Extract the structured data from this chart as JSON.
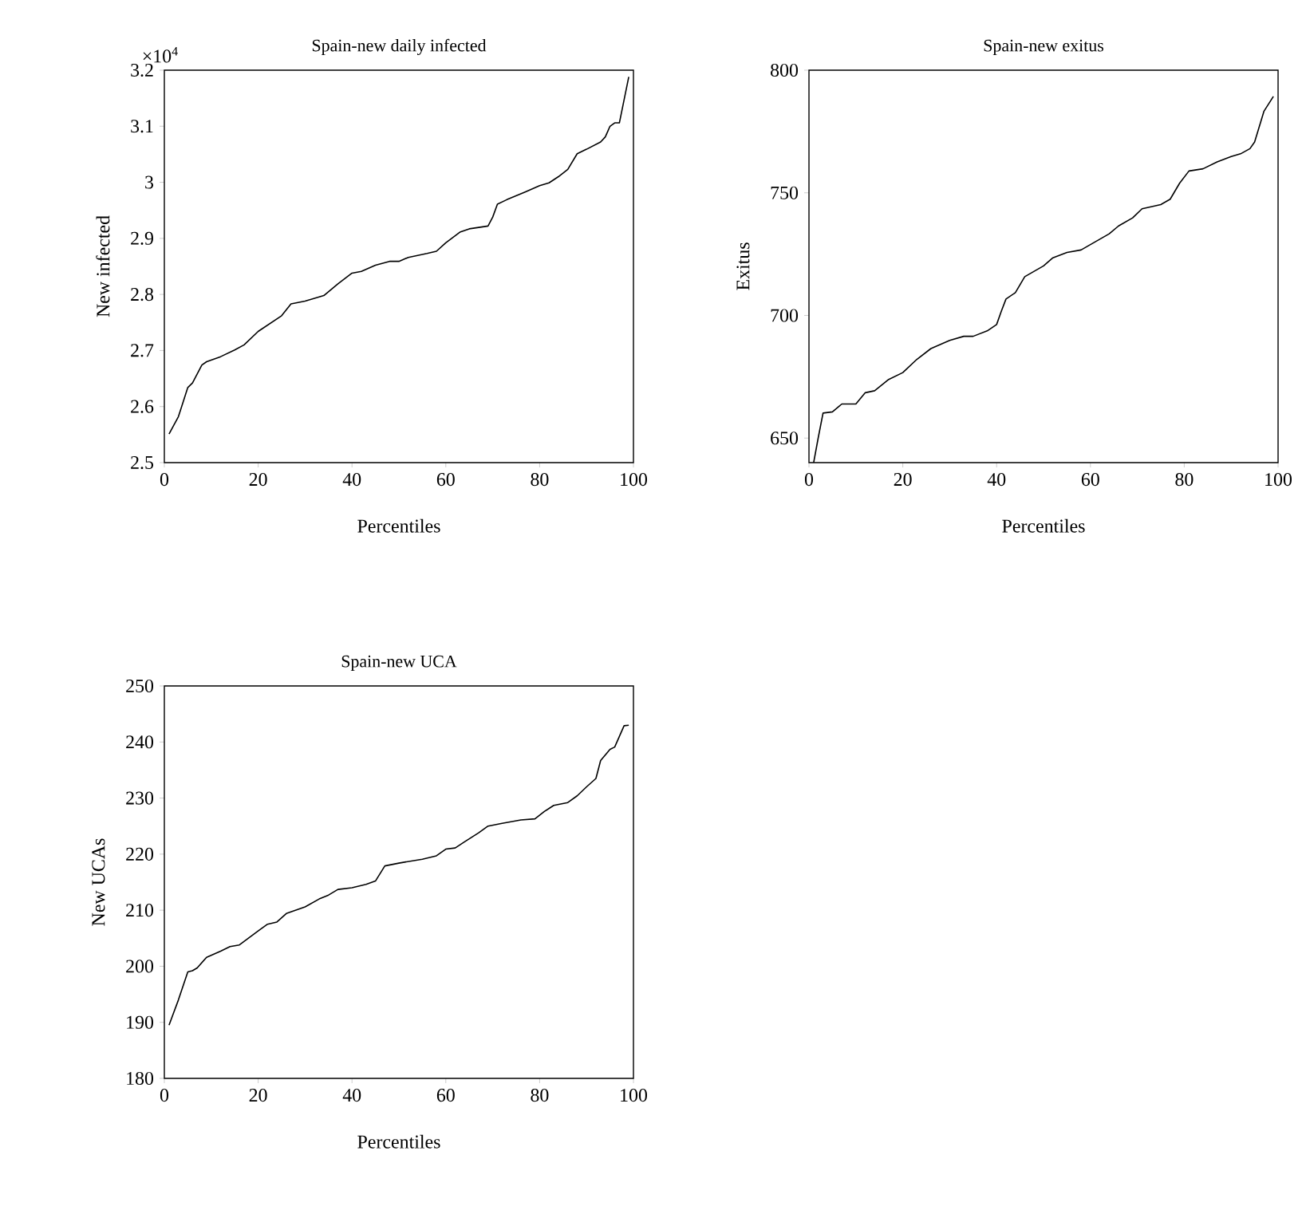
{
  "chart_data": [
    {
      "type": "line",
      "title": "Spain-new daily infected",
      "xlabel": "Percentiles",
      "ylabel": "New infected",
      "annotations": [
        "×10$^{4}$"
      ],
      "color": "#000000",
      "xlim": [
        0,
        100
      ],
      "xticks": [
        0,
        20,
        40,
        60,
        80,
        100
      ],
      "ylim": [
        2.5,
        3.2
      ],
      "yticks": [
        2.5,
        2.6,
        2.7,
        2.8,
        2.9,
        3,
        3.1,
        3.2
      ],
      "x": [
        1,
        3,
        5,
        6,
        8,
        9,
        12,
        15,
        17,
        20,
        25,
        27,
        30,
        34,
        37,
        40,
        42,
        45,
        48,
        50,
        52,
        56,
        58,
        60,
        63,
        65,
        69,
        70,
        71,
        73,
        77,
        80,
        82,
        84,
        86,
        88,
        90,
        93,
        94,
        95,
        96,
        97,
        99
      ],
      "values": [
        2.551,
        2.582,
        2.634,
        2.642,
        2.674,
        2.68,
        2.689,
        2.701,
        2.71,
        2.734,
        2.762,
        2.783,
        2.788,
        2.798,
        2.819,
        2.838,
        2.841,
        2.852,
        2.859,
        2.859,
        2.866,
        2.873,
        2.877,
        2.892,
        2.911,
        2.917,
        2.922,
        2.938,
        2.961,
        2.969,
        2.983,
        2.994,
        2.999,
        3.01,
        3.023,
        3.051,
        3.059,
        3.072,
        3.081,
        3.1,
        3.106,
        3.106,
        3.188
      ]
    },
    {
      "type": "line",
      "title": "Spain-new exitus",
      "xlabel": "Percentiles",
      "ylabel": "Exitus",
      "color": "#000000",
      "xlim": [
        0,
        100
      ],
      "xticks": [
        0,
        20,
        40,
        60,
        80,
        100
      ],
      "ylim": [
        640,
        800
      ],
      "yticks": [
        650,
        700,
        750,
        800
      ],
      "x": [
        1,
        2,
        3,
        5,
        7,
        10,
        12,
        14,
        17,
        20,
        23,
        26,
        30,
        33,
        35,
        38,
        40,
        41,
        42,
        44,
        46,
        50,
        52,
        55,
        58,
        60,
        64,
        66,
        69,
        71,
        75,
        77,
        79,
        81,
        84,
        87,
        90,
        92,
        94,
        95,
        97,
        99
      ],
      "values": [
        640,
        650.4,
        660.2,
        660.7,
        663.9,
        663.9,
        668.5,
        669.3,
        673.9,
        676.7,
        682.1,
        686.5,
        689.8,
        691.5,
        691.5,
        693.7,
        696.3,
        701.7,
        706.7,
        709.3,
        715.8,
        720.2,
        723.5,
        725.7,
        726.7,
        728.9,
        733.3,
        736.5,
        739.8,
        743.5,
        745.2,
        747.4,
        753.9,
        758.9,
        759.8,
        762.6,
        764.8,
        765.9,
        768,
        770.7,
        783.3,
        789.3
      ]
    },
    {
      "type": "line",
      "title": "Spain-new UCA",
      "xlabel": "Percentiles",
      "ylabel": "New UCAs",
      "color": "#000000",
      "xlim": [
        0,
        100
      ],
      "xticks": [
        0,
        20,
        40,
        60,
        80,
        100
      ],
      "ylim": [
        180,
        250
      ],
      "yticks": [
        180,
        190,
        200,
        210,
        220,
        230,
        240,
        250
      ],
      "x": [
        1,
        3,
        5,
        6,
        7,
        9,
        12,
        14,
        16,
        20,
        22,
        24,
        26,
        30,
        33,
        35,
        37,
        40,
        43,
        45,
        47,
        50,
        55,
        58,
        60,
        62,
        64,
        67,
        69,
        72,
        76,
        79,
        81,
        83,
        86,
        88,
        90,
        92,
        93,
        95,
        96,
        98,
        99
      ],
      "values": [
        189.5,
        194,
        199,
        199.2,
        199.7,
        201.6,
        202.7,
        203.5,
        203.8,
        206.3,
        207.5,
        207.9,
        209.4,
        210.6,
        212,
        212.7,
        213.7,
        214,
        214.6,
        215.2,
        217.9,
        218.4,
        219.1,
        219.7,
        220.9,
        221.1,
        222.2,
        223.8,
        225,
        225.5,
        226.1,
        226.3,
        227.6,
        228.7,
        229.2,
        230.4,
        232,
        233.5,
        236.7,
        238.7,
        239.1,
        242.9,
        243
      ]
    }
  ]
}
